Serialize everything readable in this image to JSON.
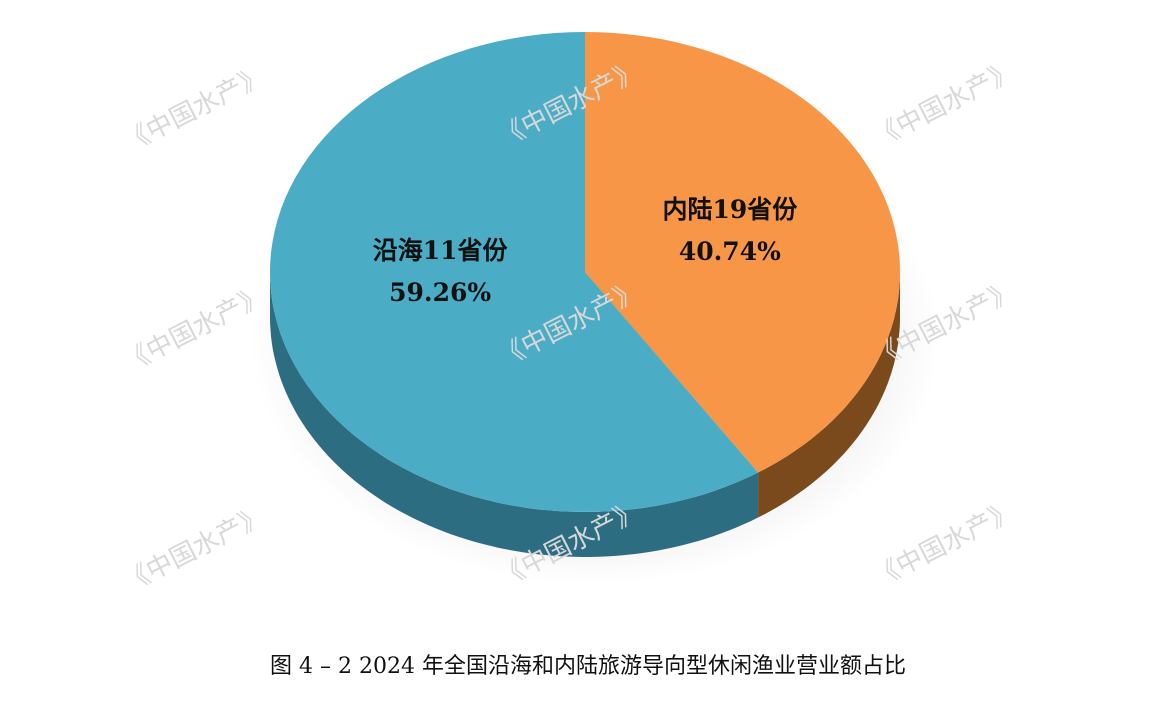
{
  "chart_data": {
    "type": "pie",
    "title": "图 4 – 2 2024 年全国沿海和内陆旅游导向型休闲渔业营业额占比",
    "watermark": "《中国水产》",
    "categories": [
      "沿海11省份",
      "内陆19省份"
    ],
    "values": [
      59.26,
      40.74
    ],
    "value_labels": [
      "59.26%",
      "40.74%"
    ],
    "colors": [
      "#4bacc6",
      "#f79646"
    ],
    "side_colors": [
      "#2d6d82",
      "#7a4a1c"
    ],
    "start_angle": 0,
    "direction": "counterclockwise"
  }
}
